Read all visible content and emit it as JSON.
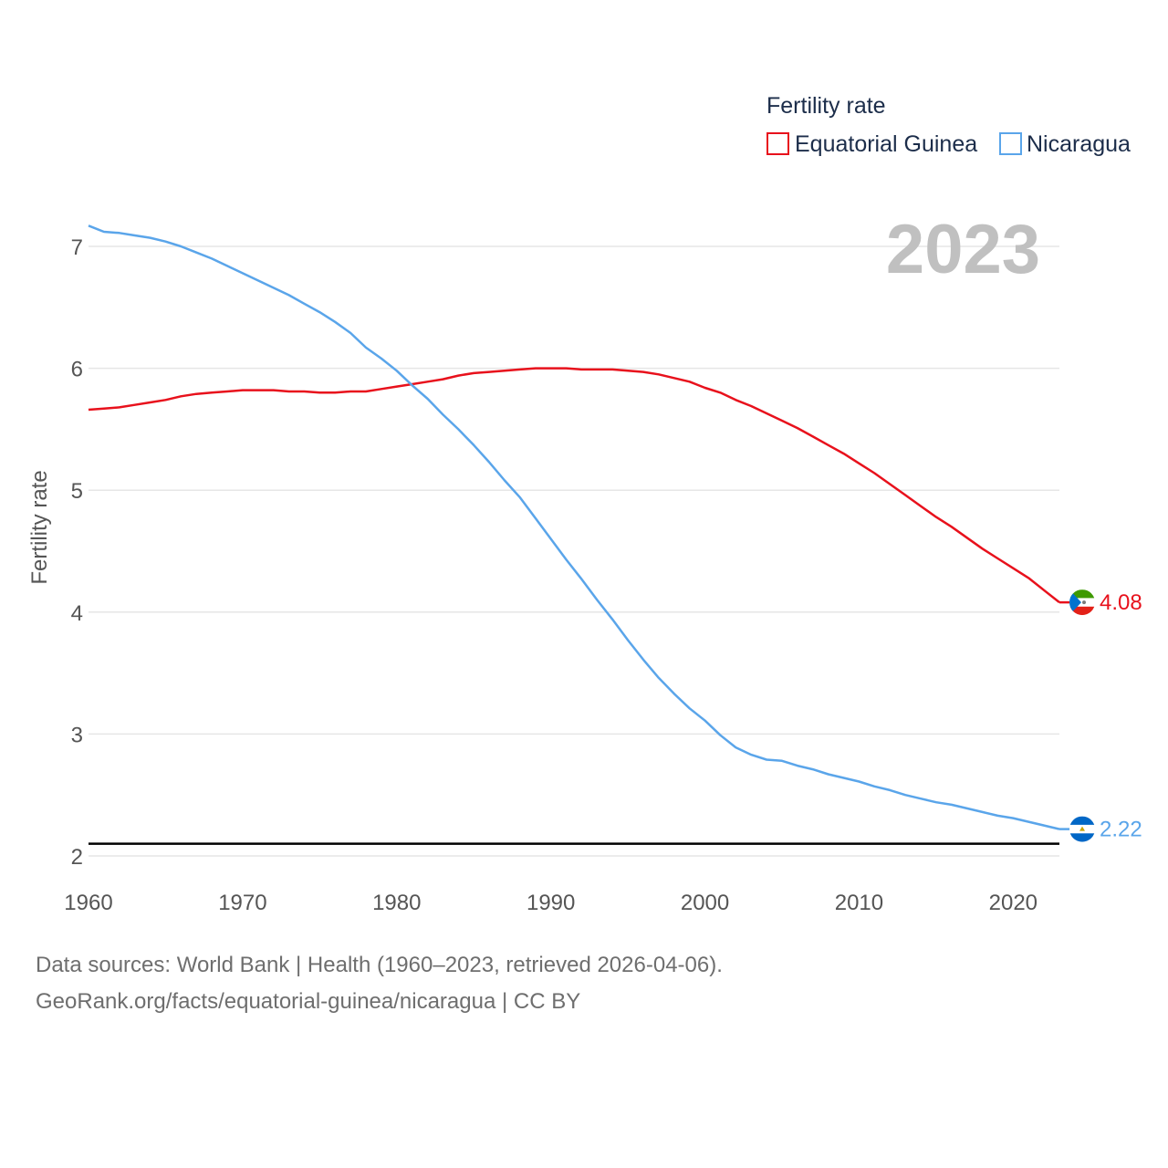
{
  "chart_data": {
    "type": "line",
    "title": "Fertility rate",
    "ylabel": "Fertility rate",
    "xlabel": "",
    "year_display": "2023",
    "xlim": [
      1960,
      2023
    ],
    "ylim": [
      2,
      7.3
    ],
    "x_ticks": [
      1960,
      1970,
      1980,
      1990,
      2000,
      2010,
      2020
    ],
    "y_ticks": [
      2,
      3,
      4,
      5,
      6,
      7
    ],
    "reference_line": {
      "value": 2.1,
      "color": "#000000"
    },
    "legend": {
      "title": "Fertility rate",
      "position": "top-right"
    },
    "series": [
      {
        "name": "Equatorial Guinea",
        "color": "#e8111c",
        "end_label": "4.08",
        "flag": "equatorial-guinea-flag-icon",
        "x": [
          1960,
          1961,
          1962,
          1963,
          1964,
          1965,
          1966,
          1967,
          1968,
          1969,
          1970,
          1971,
          1972,
          1973,
          1974,
          1975,
          1976,
          1977,
          1978,
          1979,
          1980,
          1981,
          1982,
          1983,
          1984,
          1985,
          1986,
          1987,
          1988,
          1989,
          1990,
          1991,
          1992,
          1993,
          1994,
          1995,
          1996,
          1997,
          1998,
          1999,
          2000,
          2001,
          2002,
          2003,
          2004,
          2005,
          2006,
          2007,
          2008,
          2009,
          2010,
          2011,
          2012,
          2013,
          2014,
          2015,
          2016,
          2017,
          2018,
          2019,
          2020,
          2021,
          2022,
          2023
        ],
        "values": [
          5.66,
          5.67,
          5.68,
          5.7,
          5.72,
          5.74,
          5.77,
          5.79,
          5.8,
          5.81,
          5.82,
          5.82,
          5.82,
          5.81,
          5.81,
          5.8,
          5.8,
          5.81,
          5.81,
          5.83,
          5.85,
          5.87,
          5.89,
          5.91,
          5.94,
          5.96,
          5.97,
          5.98,
          5.99,
          6.0,
          6.0,
          6.0,
          5.99,
          5.99,
          5.99,
          5.98,
          5.97,
          5.95,
          5.92,
          5.89,
          5.84,
          5.8,
          5.74,
          5.69,
          5.63,
          5.57,
          5.51,
          5.44,
          5.37,
          5.3,
          5.22,
          5.14,
          5.05,
          4.96,
          4.87,
          4.78,
          4.7,
          4.61,
          4.52,
          4.44,
          4.36,
          4.28,
          4.18,
          4.08
        ]
      },
      {
        "name": "Nicaragua",
        "color": "#5aa5ea",
        "end_label": "2.22",
        "flag": "nicaragua-flag-icon",
        "x": [
          1960,
          1961,
          1962,
          1963,
          1964,
          1965,
          1966,
          1967,
          1968,
          1969,
          1970,
          1971,
          1972,
          1973,
          1974,
          1975,
          1976,
          1977,
          1978,
          1979,
          1980,
          1981,
          1982,
          1983,
          1984,
          1985,
          1986,
          1987,
          1988,
          1989,
          1990,
          1991,
          1992,
          1993,
          1994,
          1995,
          1996,
          1997,
          1998,
          1999,
          2000,
          2001,
          2002,
          2003,
          2004,
          2005,
          2006,
          2007,
          2008,
          2009,
          2010,
          2011,
          2012,
          2013,
          2014,
          2015,
          2016,
          2017,
          2018,
          2019,
          2020,
          2021,
          2022,
          2023
        ],
        "values": [
          7.17,
          7.12,
          7.11,
          7.09,
          7.07,
          7.04,
          7.0,
          6.95,
          6.9,
          6.84,
          6.78,
          6.72,
          6.66,
          6.6,
          6.53,
          6.46,
          6.38,
          6.29,
          6.17,
          6.08,
          5.98,
          5.86,
          5.75,
          5.62,
          5.5,
          5.37,
          5.23,
          5.08,
          4.94,
          4.77,
          4.6,
          4.43,
          4.27,
          4.1,
          3.94,
          3.77,
          3.61,
          3.46,
          3.33,
          3.21,
          3.11,
          2.99,
          2.89,
          2.83,
          2.79,
          2.78,
          2.74,
          2.71,
          2.67,
          2.64,
          2.61,
          2.57,
          2.54,
          2.5,
          2.47,
          2.44,
          2.42,
          2.39,
          2.36,
          2.33,
          2.31,
          2.28,
          2.25,
          2.22
        ]
      }
    ]
  },
  "footer": {
    "line1": "Data sources: World Bank | Health (1960–2023, retrieved 2026-04-06).",
    "line2": "GeoRank.org/facts/equatorial-guinea/nicaragua | CC BY"
  }
}
